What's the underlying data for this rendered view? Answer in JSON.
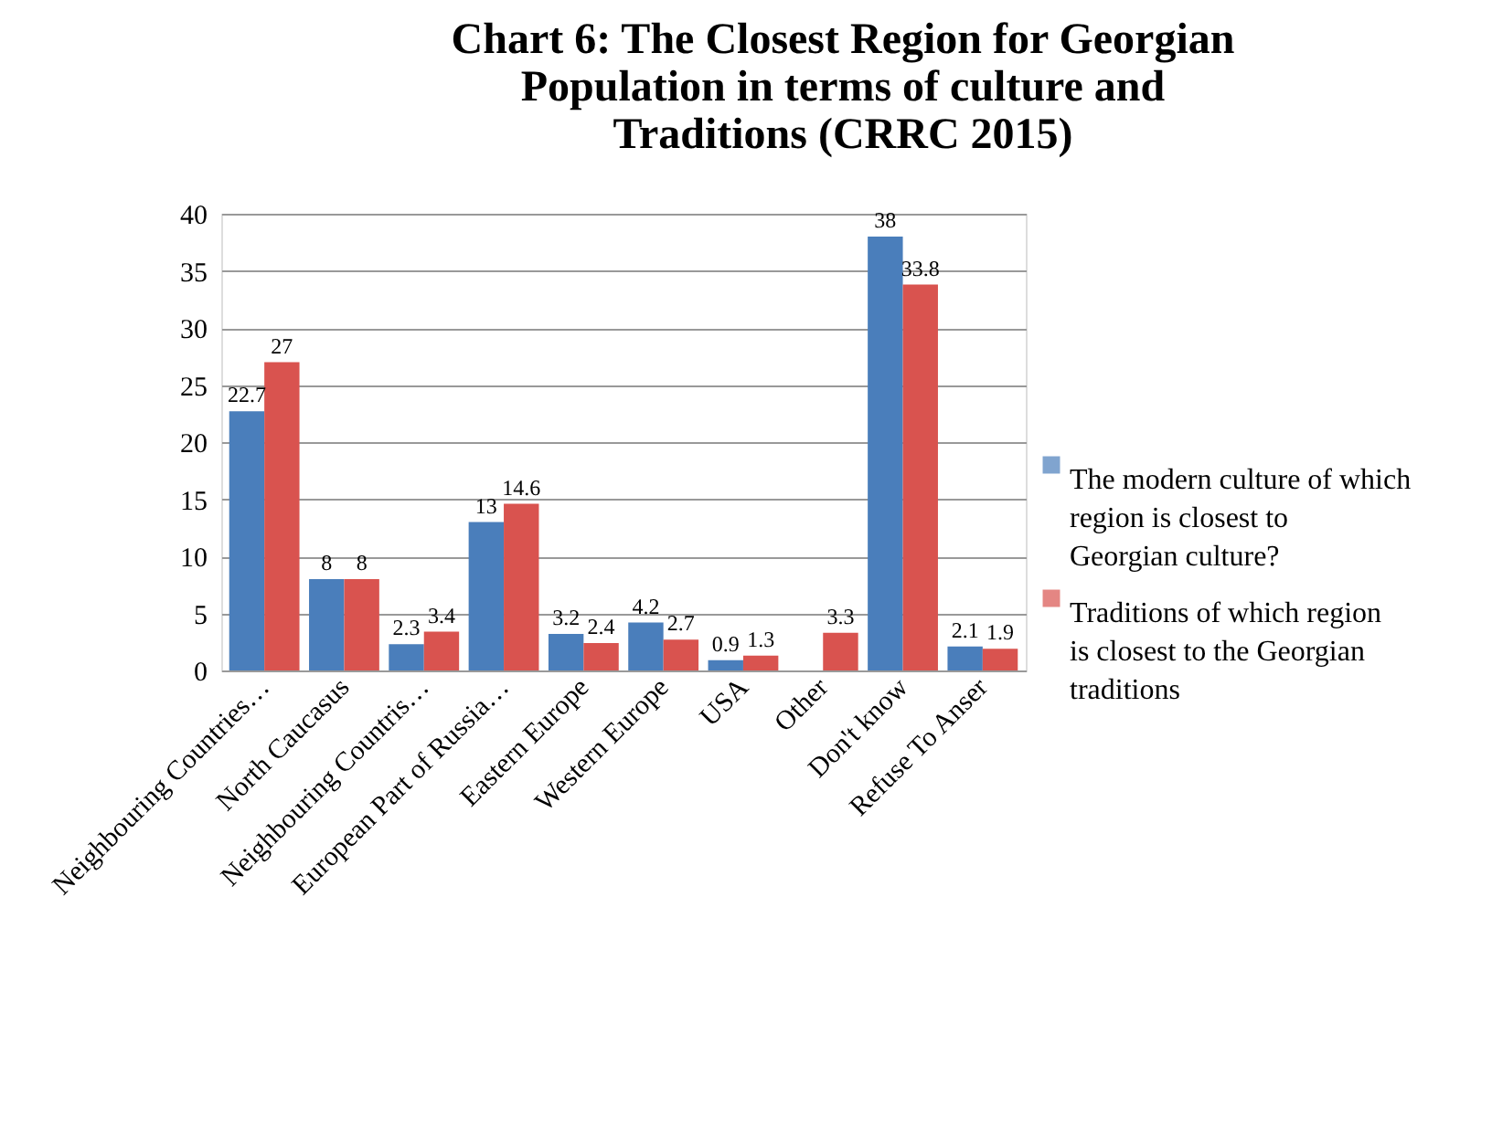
{
  "chart_data": {
    "type": "bar",
    "title": "Chart 6: The Closest Region for Georgian Population in terms of culture and Traditions (CRRC 2015)",
    "categories": [
      "Neighbouring Countries…",
      "North Caucasus",
      "Neighbouring Countris…",
      "European Part of Russia…",
      "Eastern Europe",
      "Western Europe",
      "USA",
      "Other",
      "Don't know",
      "Refuse To Anser"
    ],
    "series": [
      {
        "name": "The modern culture of which region is closest to Georgian culture?",
        "color": "#4a7ebb",
        "values": [
          22.7,
          8,
          2.3,
          13,
          3.2,
          4.2,
          0.9,
          null,
          38,
          2.1
        ]
      },
      {
        "name": "Traditions of which region is closest to the Georgian traditions",
        "color": "#d9534f",
        "values": [
          27,
          8,
          3.4,
          14.6,
          2.4,
          2.7,
          1.3,
          3.3,
          33.8,
          1.9
        ]
      }
    ],
    "ylim": [
      0,
      40
    ],
    "yticks": [
      0,
      5,
      10,
      15,
      20,
      25,
      30,
      35,
      40
    ],
    "grid": "y",
    "legend": "right",
    "data_labels": true
  }
}
